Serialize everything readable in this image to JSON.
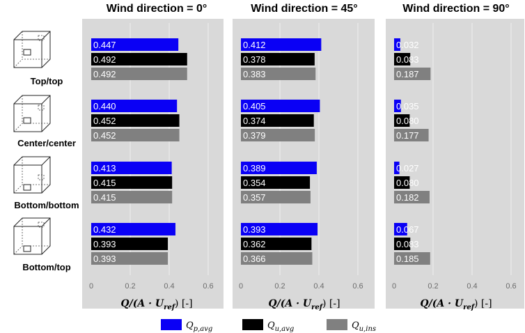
{
  "chart_data": {
    "type": "bar",
    "orientation": "horizontal",
    "xlim": [
      0,
      0.6
    ],
    "x_ticks": [
      "0",
      "0.2",
      "0.4",
      "0.6"
    ],
    "xlabel": "Q/(A · U_ref) [-]",
    "xlabel_parts": {
      "main": "Q/(A · U",
      "sub": "ref",
      "end": ") [-]"
    },
    "grid": "vertical",
    "legend_position": "bottom",
    "categories": [
      "Top/top",
      "Center/center",
      "Bottom/bottom",
      "Bottom/top"
    ],
    "series": [
      {
        "name": "Q_p,avg",
        "legend": {
          "base": "Q",
          "sub": "p,avg"
        },
        "color": "#0a00f5"
      },
      {
        "name": "Q_u,avg",
        "legend": {
          "base": "Q",
          "sub": "u,avg"
        },
        "color": "#000000"
      },
      {
        "name": "Q_u,ins",
        "legend": {
          "base": "Q",
          "sub": "u,ins"
        },
        "color": "#808080"
      }
    ],
    "panels": [
      {
        "title": "Wind direction =   0°",
        "values": [
          [
            0.447,
            0.492,
            0.492
          ],
          [
            0.44,
            0.452,
            0.452
          ],
          [
            0.413,
            0.415,
            0.415
          ],
          [
            0.432,
            0.393,
            0.393
          ]
        ],
        "labels": [
          [
            "0.447",
            "0.492",
            "0.492"
          ],
          [
            "0.440",
            "0.452",
            "0.452"
          ],
          [
            "0.413",
            "0.415",
            "0.415"
          ],
          [
            "0.432",
            "0.393",
            "0.393"
          ]
        ]
      },
      {
        "title": "Wind direction = 45°",
        "values": [
          [
            0.412,
            0.378,
            0.383
          ],
          [
            0.405,
            0.374,
            0.379
          ],
          [
            0.389,
            0.354,
            0.357
          ],
          [
            0.393,
            0.362,
            0.366
          ]
        ],
        "labels": [
          [
            "0.412",
            "0.378",
            "0.383"
          ],
          [
            "0.405",
            "0.374",
            "0.379"
          ],
          [
            "0.389",
            "0.354",
            "0.357"
          ],
          [
            "0.393",
            "0.362",
            "0.366"
          ]
        ]
      },
      {
        "title": "Wind direction = 90°",
        "values": [
          [
            0.032,
            0.083,
            0.187
          ],
          [
            0.035,
            0.08,
            0.177
          ],
          [
            0.027,
            0.08,
            0.182
          ],
          [
            0.067,
            0.083,
            0.185
          ]
        ],
        "labels": [
          [
            "0.032",
            "0.083",
            "0.187"
          ],
          [
            "0.035",
            "0.080",
            "0.177"
          ],
          [
            "0.027",
            "0.080",
            "0.182"
          ],
          [
            "0.067",
            "0.083",
            "0.185"
          ]
        ]
      }
    ]
  },
  "colors": {
    "panel_bg": "#d9d9d9",
    "gridline": "#eeeeee"
  },
  "icons": [
    "box-top-top-icon",
    "box-center-center-icon",
    "box-bottom-bottom-icon",
    "box-bottom-top-icon"
  ]
}
